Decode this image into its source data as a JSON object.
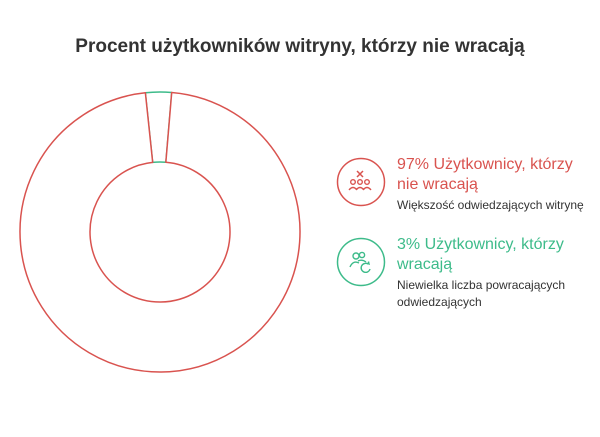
{
  "title": "Procent użytkowników witryny, którzy nie wracają",
  "colors": {
    "non_returning": "#d9534f",
    "returning": "#3dbb8a"
  },
  "chart_data": {
    "type": "pie",
    "title": "Procent użytkowników witryny, którzy nie wracają",
    "slices": [
      {
        "name": "Użytkownicy, którzy nie wracają",
        "value": 97,
        "color": "#d9534f"
      },
      {
        "name": "Użytkownicy, którzy wracają",
        "value": 3,
        "color": "#3dbb8a"
      }
    ],
    "style": "donut",
    "legend_position": "right"
  },
  "legend": [
    {
      "heading": "97% Użytkownicy, którzy nie wracają",
      "description": "Większość odwiedzających witrynę",
      "icon": "users-cross-icon",
      "color": "#d9534f"
    },
    {
      "heading": "3% Użytkownicy, którzy wracają",
      "description": "Niewielka liczba powracających odwiedzających",
      "icon": "users-return-icon",
      "color": "#3dbb8a"
    }
  ]
}
